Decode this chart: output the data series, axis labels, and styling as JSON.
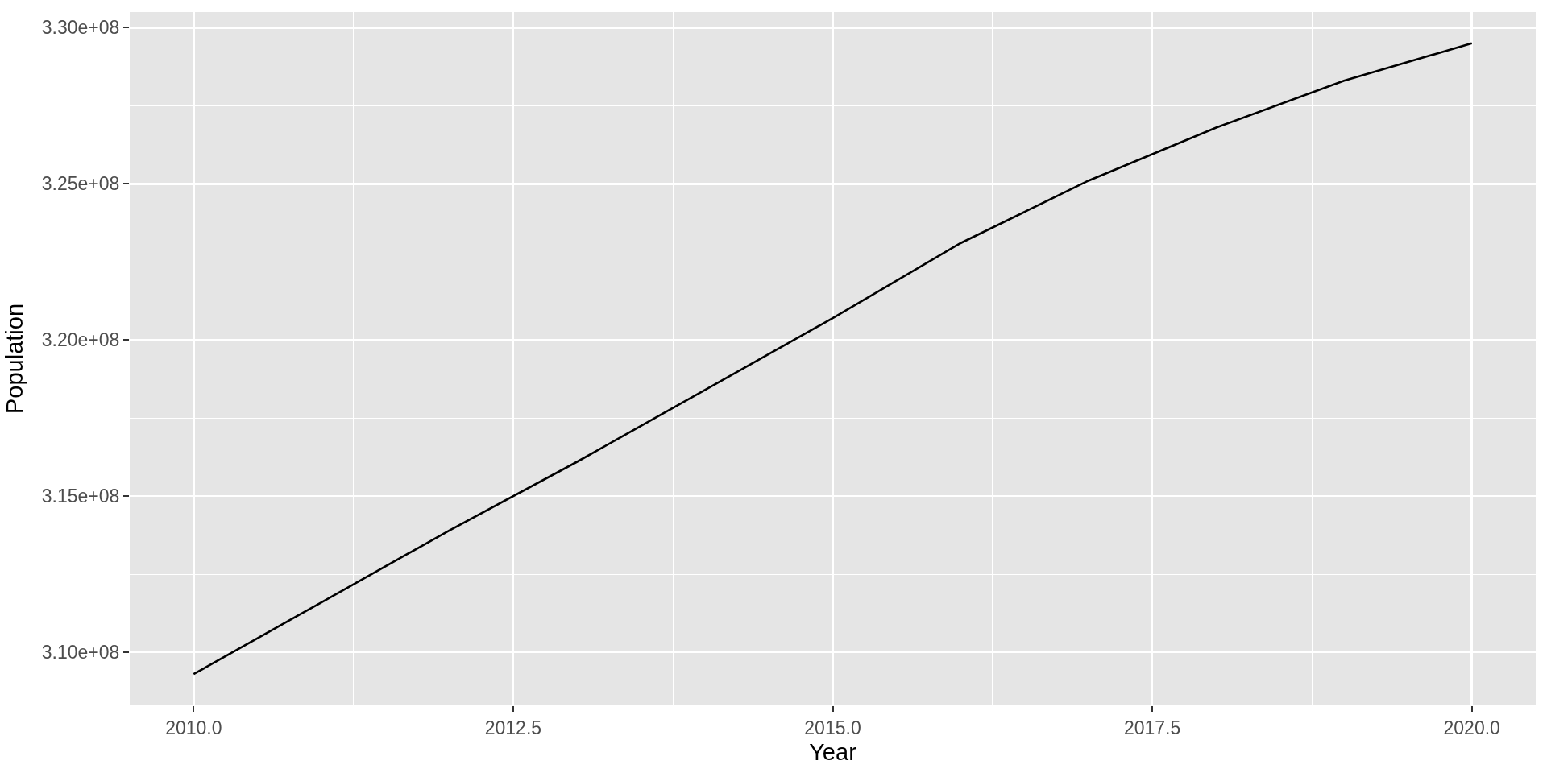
{
  "chart_data": {
    "type": "line",
    "xlabel": "Year",
    "ylabel": "Population",
    "x": [
      2010,
      2011,
      2012,
      2013,
      2014,
      2015,
      2016,
      2017,
      2018,
      2019,
      2020
    ],
    "values": [
      309300000,
      311600000,
      313900000,
      316100000,
      318400000,
      320700000,
      323100000,
      325100000,
      326800000,
      328300000,
      329500000
    ],
    "color": "#000000",
    "xlim": [
      2009.5,
      2020.5
    ],
    "ylim": [
      308300000,
      330500000
    ],
    "xticks": [
      {
        "value": 2010,
        "label": "2010.0"
      },
      2012.5,
      {
        "value": 2015,
        "label": "2015.0"
      },
      2017.5,
      {
        "value": 2020,
        "label": "2020.0"
      }
    ],
    "yticks": [
      {
        "value": 310000000,
        "label": "3.10e+08"
      },
      {
        "value": 315000000,
        "label": "3.15e+08"
      },
      {
        "value": 320000000,
        "label": "3.20e+08"
      },
      {
        "value": 325000000,
        "label": "3.25e+08"
      },
      {
        "value": 330000000,
        "label": "3.30e+08"
      }
    ],
    "grid": true
  }
}
